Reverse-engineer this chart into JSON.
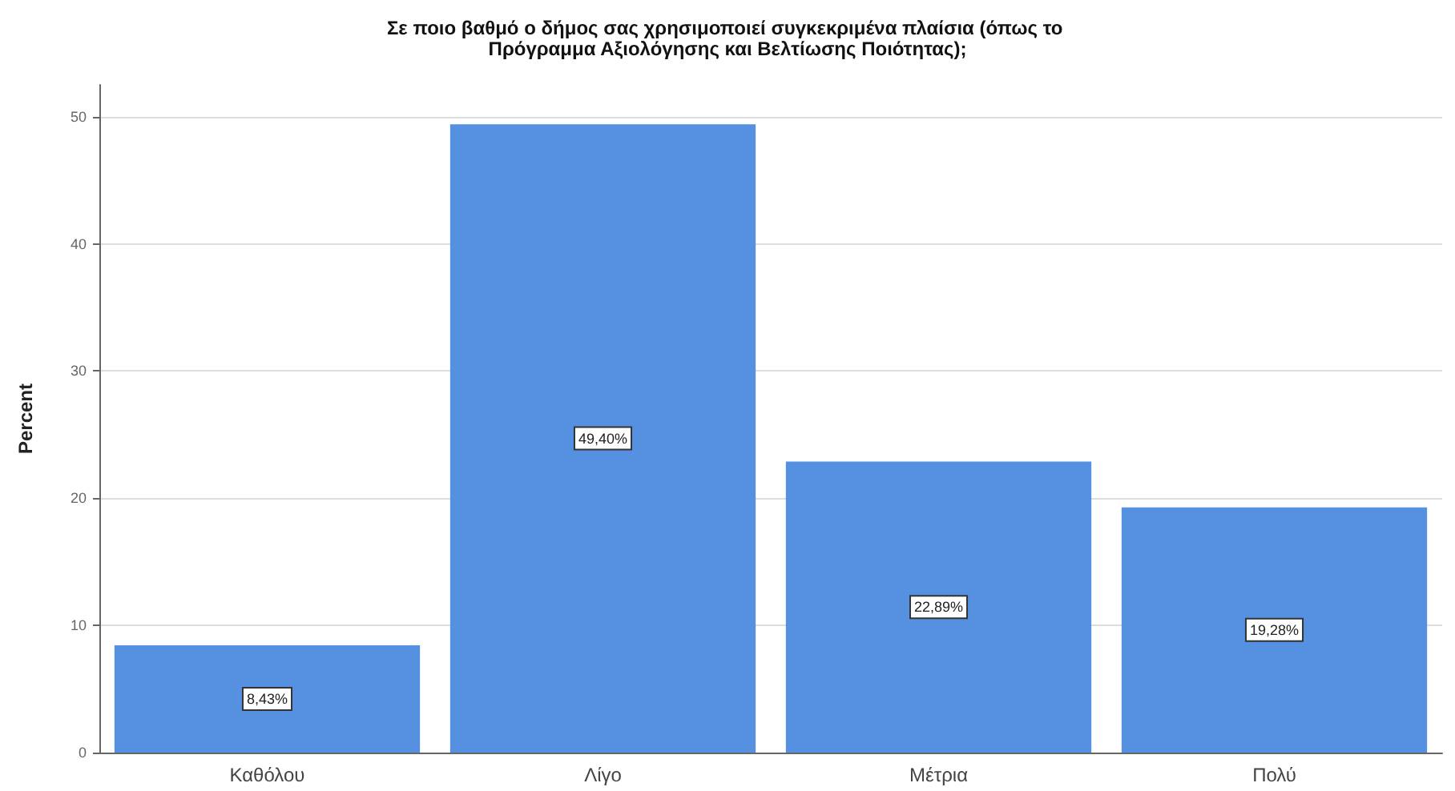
{
  "chart_data": {
    "type": "bar",
    "title": "Σε ποιο βαθμό ο δήμος σας χρησιμοποιεί συγκεκριμένα πλαίσια (όπως το Πρόγραμμα Αξιολόγησης και Βελτίωσης Ποιότητας);",
    "ylabel": "Percent",
    "categories": [
      "Καθόλου",
      "Λίγο",
      "Μέτρια",
      "Πολύ"
    ],
    "values": [
      8.43,
      49.4,
      22.89,
      19.28
    ],
    "value_labels": [
      "8,43%",
      "49,40%",
      "22,89%",
      "19,28%"
    ],
    "color": "#5591e0",
    "ylim": [
      0,
      52.5
    ],
    "yticks": [
      0,
      10,
      20,
      30,
      40,
      50
    ],
    "grid": "y"
  }
}
